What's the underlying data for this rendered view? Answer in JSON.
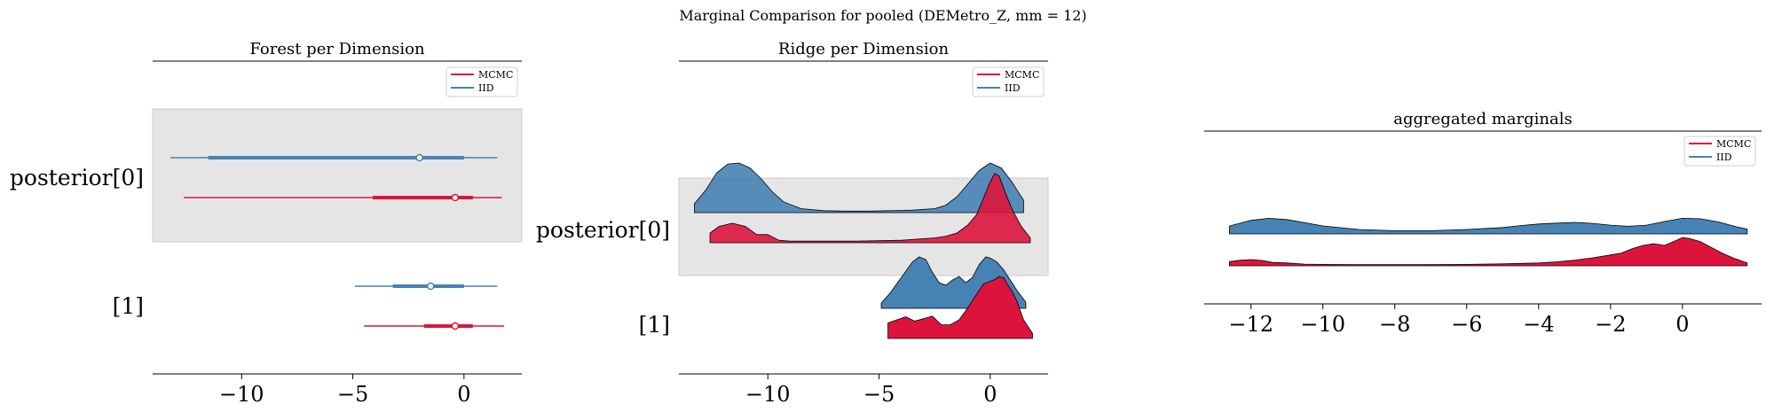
{
  "suptitle": "Marginal Comparison for pooled (DEMetro_Z, mm = 12)",
  "colors": {
    "mcmc": "#dc143c",
    "iid": "#4682b4",
    "band": "#e5e5e5"
  },
  "legend": {
    "mcmc": "MCMC",
    "iid": "IID"
  },
  "chart_data": [
    {
      "type": "forest",
      "title": "Forest per Dimension",
      "rows": [
        "posterior[0]",
        "[1]"
      ],
      "xticks": [
        -10,
        -5,
        0
      ],
      "xtick_labels": [
        "−10",
        "−5",
        "0"
      ],
      "xlim": [
        -14,
        2.6
      ],
      "legend_placement": "top-right",
      "series": [
        {
          "name": "IID",
          "dimension": 0,
          "hdi94": [
            -13.2,
            1.5
          ],
          "hdi50": [
            -11.5,
            0.0
          ],
          "median": -2.0
        },
        {
          "name": "MCMC",
          "dimension": 0,
          "hdi94": [
            -12.6,
            1.7
          ],
          "hdi50": [
            -4.1,
            0.4
          ],
          "median": -0.4
        },
        {
          "name": "IID",
          "dimension": 1,
          "hdi94": [
            -4.9,
            1.5
          ],
          "hdi50": [
            -3.2,
            0.0
          ],
          "median": -1.5
        },
        {
          "name": "MCMC",
          "dimension": 1,
          "hdi94": [
            -4.5,
            1.8
          ],
          "hdi50": [
            -1.8,
            0.4
          ],
          "median": -0.4
        }
      ]
    },
    {
      "type": "ridge",
      "title": "Ridge per Dimension",
      "rows": [
        "posterior[0]",
        "[1]"
      ],
      "xticks": [
        -10,
        -5,
        0
      ],
      "xtick_labels": [
        "−10",
        "−5",
        "0"
      ],
      "xlim": [
        -14,
        2.6
      ],
      "legend_placement": "top-right",
      "series": [
        {
          "name": "IID",
          "dimension": 0,
          "x": [
            -13.3,
            -12.8,
            -12.3,
            -11.8,
            -11.3,
            -10.8,
            -10.3,
            -9.8,
            -9.3,
            -8.5,
            -7.5,
            -6.5,
            -5.5,
            -4.5,
            -3.5,
            -2.5,
            -2.0,
            -1.5,
            -1.0,
            -0.5,
            0.0,
            0.5,
            1.0,
            1.5
          ],
          "y": [
            0.18,
            0.45,
            0.8,
            0.98,
            1.0,
            0.9,
            0.68,
            0.42,
            0.22,
            0.08,
            0.04,
            0.03,
            0.03,
            0.04,
            0.05,
            0.08,
            0.15,
            0.32,
            0.58,
            0.85,
            1.0,
            0.9,
            0.6,
            0.25
          ]
        },
        {
          "name": "MCMC",
          "dimension": 0,
          "x": [
            -12.6,
            -12.2,
            -11.6,
            -11.0,
            -10.5,
            -10.0,
            -9.5,
            -9.0,
            -8.0,
            -6.0,
            -4.0,
            -2.5,
            -2.0,
            -1.5,
            -1.0,
            -0.6,
            -0.3,
            0.0,
            0.2,
            0.4,
            0.7,
            1.0,
            1.4,
            1.8
          ],
          "y": [
            0.12,
            0.2,
            0.24,
            0.2,
            0.1,
            0.1,
            0.03,
            0.02,
            0.02,
            0.02,
            0.03,
            0.06,
            0.08,
            0.12,
            0.22,
            0.35,
            0.55,
            0.75,
            0.85,
            0.82,
            0.6,
            0.4,
            0.2,
            0.06
          ]
        },
        {
          "name": "IID",
          "dimension": 1,
          "x": [
            -4.9,
            -4.5,
            -4.0,
            -3.5,
            -3.2,
            -2.9,
            -2.6,
            -2.3,
            -2.0,
            -1.7,
            -1.4,
            -1.1,
            -0.8,
            -0.5,
            -0.2,
            0.0,
            0.3,
            0.6,
            0.9,
            1.2,
            1.6
          ],
          "y": [
            0.1,
            0.3,
            0.6,
            0.9,
            1.0,
            0.95,
            0.7,
            0.5,
            0.45,
            0.55,
            0.62,
            0.5,
            0.6,
            0.85,
            1.0,
            0.98,
            0.9,
            0.75,
            0.55,
            0.35,
            0.12
          ]
        },
        {
          "name": "MCMC",
          "dimension": 1,
          "x": [
            -4.6,
            -4.2,
            -3.8,
            -3.4,
            -3.0,
            -2.6,
            -2.2,
            -1.8,
            -1.4,
            -1.0,
            -0.6,
            -0.3,
            0.0,
            0.2,
            0.4,
            0.6,
            0.8,
            1.0,
            1.2,
            1.5,
            1.9
          ],
          "y": [
            0.25,
            0.3,
            0.35,
            0.28,
            0.32,
            0.36,
            0.22,
            0.22,
            0.3,
            0.5,
            0.72,
            0.88,
            0.92,
            0.95,
            1.0,
            0.98,
            0.86,
            0.75,
            0.6,
            0.3,
            0.08
          ]
        }
      ]
    },
    {
      "type": "ridge",
      "title": "aggregated marginals",
      "xticks": [
        -12,
        -10,
        -8,
        -6,
        -4,
        -2,
        0
      ],
      "xtick_labels": [
        "−12",
        "−10",
        "−8",
        "−6",
        "−4",
        "−2",
        "0"
      ],
      "xlim": [
        -13.3,
        2.2
      ],
      "legend_placement": "top-right",
      "series": [
        {
          "name": "IID",
          "x": [
            -12.6,
            -12.0,
            -11.5,
            -11.0,
            -10.0,
            -9.0,
            -8.0,
            -7.0,
            -6.0,
            -5.0,
            -4.5,
            -4.0,
            -3.5,
            -3.0,
            -2.5,
            -2.0,
            -1.5,
            -1.0,
            -0.5,
            0.0,
            0.5,
            1.0,
            1.5,
            1.8
          ],
          "y": [
            0.5,
            0.85,
            0.98,
            0.9,
            0.5,
            0.28,
            0.2,
            0.2,
            0.28,
            0.4,
            0.52,
            0.62,
            0.68,
            0.72,
            0.66,
            0.55,
            0.48,
            0.55,
            0.78,
            0.98,
            0.95,
            0.75,
            0.45,
            0.3
          ]
        },
        {
          "name": "MCMC",
          "x": [
            -12.6,
            -12.3,
            -12.0,
            -11.7,
            -11.4,
            -11.0,
            -10.5,
            -10.0,
            -9.0,
            -8.0,
            -7.0,
            -6.0,
            -5.0,
            -4.0,
            -3.5,
            -3.0,
            -2.5,
            -2.0,
            -1.7,
            -1.4,
            -1.1,
            -0.8,
            -0.5,
            -0.2,
            0.0,
            0.2,
            0.5,
            0.8,
            1.1,
            1.4,
            1.8
          ],
          "y": [
            0.15,
            0.2,
            0.22,
            0.19,
            0.12,
            0.1,
            0.06,
            0.05,
            0.04,
            0.04,
            0.04,
            0.05,
            0.07,
            0.1,
            0.14,
            0.2,
            0.28,
            0.38,
            0.45,
            0.6,
            0.72,
            0.78,
            0.72,
            0.88,
            1.0,
            0.96,
            0.85,
            0.65,
            0.45,
            0.28,
            0.1
          ]
        }
      ]
    }
  ]
}
